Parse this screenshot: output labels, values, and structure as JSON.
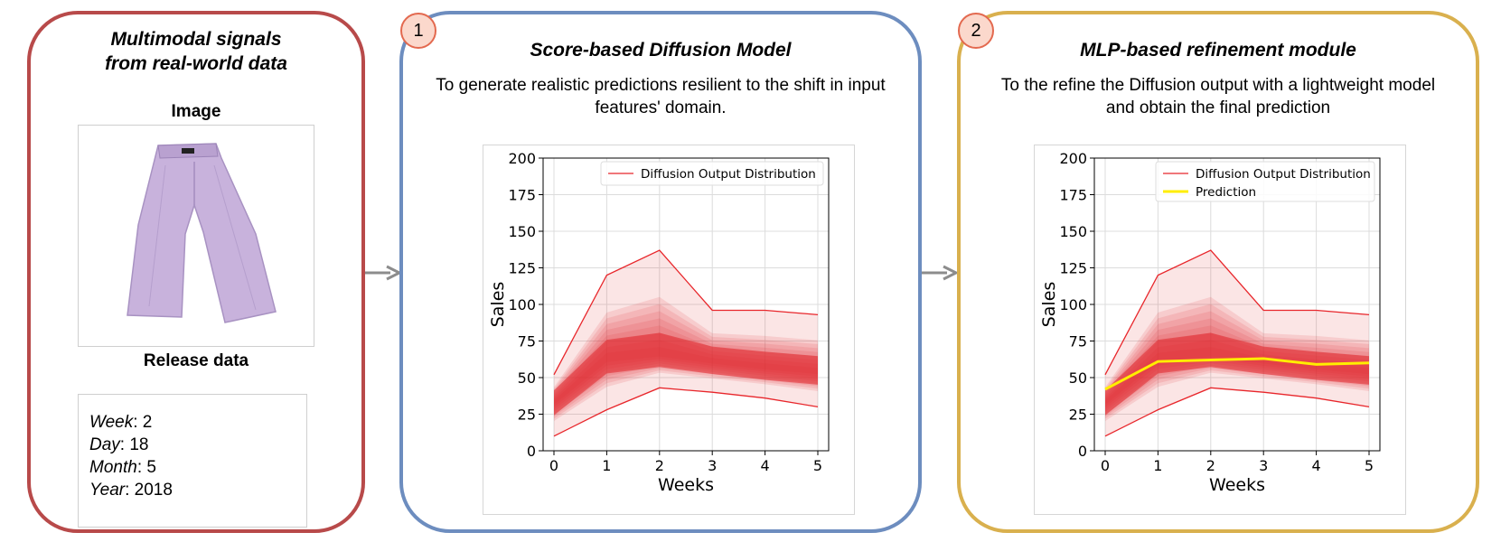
{
  "panels": {
    "inputs": {
      "title_line1": "Multimodal signals",
      "title_line2": "from real-world data",
      "image_label": "Image",
      "image_icon": "purple-wide-leg-trousers",
      "release_label": "Release data",
      "release": [
        {
          "key": "Week",
          "value": ": 2"
        },
        {
          "key": "Day",
          "value": ": 18"
        },
        {
          "key": "Month",
          "value": ": 5"
        },
        {
          "key": "Year",
          "value": ": 2018"
        }
      ]
    },
    "diffusion": {
      "badge": "1",
      "title": "Score-based Diffusion Model",
      "desc_line1": "To generate realistic predictions resilient to the shift in input",
      "desc_line2": "features' domain."
    },
    "refinement": {
      "badge": "2",
      "title": "MLP-based refinement module",
      "desc_line1": "To the refine the Diffusion output with a lightweight model",
      "desc_line2": "and obtain the final prediction"
    }
  },
  "colors": {
    "panel_inputs": "#b84a4a",
    "panel_diffusion": "#6d8dbf",
    "panel_refinement": "#d9b04e",
    "band": "#e0262b",
    "prediction": "#ffee00"
  },
  "chart_data": [
    {
      "type": "area",
      "xlabel": "Weeks",
      "ylabel": "Sales",
      "xlim": [
        0,
        5
      ],
      "ylim": [
        0,
        200
      ],
      "xticks": [
        0,
        1,
        2,
        3,
        4,
        5
      ],
      "yticks": [
        0,
        25,
        50,
        75,
        100,
        125,
        150,
        175,
        200
      ],
      "grid": true,
      "legend": "top-right",
      "legend_entries": [
        "Diffusion Output Distribution"
      ],
      "x": [
        0,
        1,
        2,
        3,
        4,
        5
      ],
      "series": [
        {
          "name": "upper",
          "values": [
            52,
            120,
            137,
            96,
            96,
            93
          ]
        },
        {
          "name": "lower",
          "values": [
            10,
            28,
            43,
            40,
            36,
            30
          ]
        },
        {
          "name": "median",
          "values": [
            33,
            63,
            66,
            61,
            57,
            54
          ]
        }
      ]
    },
    {
      "type": "area",
      "xlabel": "Weeks",
      "ylabel": "Sales",
      "xlim": [
        0,
        5
      ],
      "ylim": [
        0,
        200
      ],
      "xticks": [
        0,
        1,
        2,
        3,
        4,
        5
      ],
      "yticks": [
        0,
        25,
        50,
        75,
        100,
        125,
        150,
        175,
        200
      ],
      "grid": true,
      "legend": "top-right",
      "legend_entries": [
        "Diffusion Output Distribution",
        "Prediction"
      ],
      "x": [
        0,
        1,
        2,
        3,
        4,
        5
      ],
      "series": [
        {
          "name": "upper",
          "values": [
            52,
            120,
            137,
            96,
            96,
            93
          ]
        },
        {
          "name": "lower",
          "values": [
            10,
            28,
            43,
            40,
            36,
            30
          ]
        },
        {
          "name": "median",
          "values": [
            33,
            63,
            66,
            61,
            57,
            54
          ]
        },
        {
          "name": "Prediction",
          "values": [
            42,
            61,
            62,
            63,
            59,
            60
          ]
        }
      ]
    }
  ]
}
